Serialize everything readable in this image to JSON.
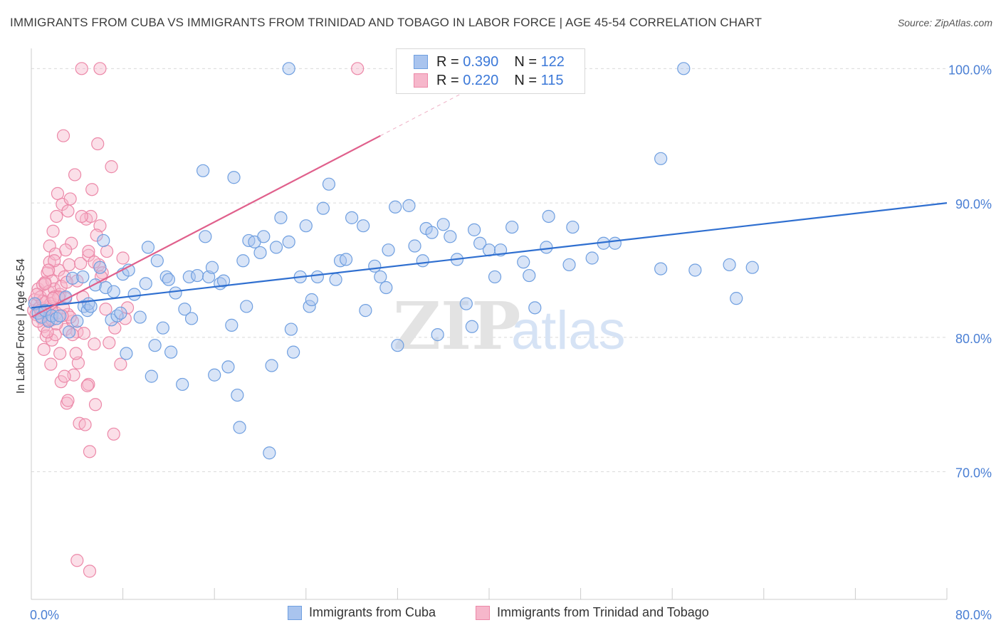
{
  "title": "IMMIGRANTS FROM CUBA VS IMMIGRANTS FROM TRINIDAD AND TOBAGO IN LABOR FORCE | AGE 45-54 CORRELATION CHART",
  "source": "Source: ZipAtlas.com",
  "watermark": {
    "zip": "ZIP",
    "atlas": "atlas"
  },
  "legend": {
    "cuba": {
      "r_label": "R = ",
      "r_value": "0.390",
      "n_label": "N = ",
      "n_value": "122"
    },
    "tt": {
      "r_label": "R = ",
      "r_value": "0.220",
      "n_label": "N = ",
      "n_value": "115"
    }
  },
  "bottom_legend": {
    "cuba": "Immigrants from Cuba",
    "tt": "Immigrants from Trinidad and Tobago"
  },
  "colors": {
    "cuba_fill": "#a9c4ee",
    "cuba_stroke": "#6f9fe0",
    "cuba_line": "#2f6fd0",
    "tt_fill": "#f6b7cb",
    "tt_stroke": "#ec88a8",
    "tt_line": "#e0608c",
    "axis_text": "#4a7fd4",
    "grid": "#d9d9d9"
  },
  "chart_data": {
    "type": "scatter",
    "title": "IMMIGRANTS FROM CUBA VS IMMIGRANTS FROM TRINIDAD AND TOBAGO IN LABOR FORCE | AGE 45-54 CORRELATION CHART",
    "xlabel": "",
    "ylabel": "In Labor Force | Age 45-54",
    "xlim": [
      0,
      80
    ],
    "ylim": [
      60.5,
      101.5
    ],
    "x_tick_labels": [
      "0.0%",
      "80.0%"
    ],
    "y_ticks": [
      70,
      80,
      90,
      100
    ],
    "y_tick_labels": [
      "70.0%",
      "80.0%",
      "90.0%",
      "100.0%"
    ],
    "grid": true,
    "series": [
      {
        "name": "Immigrants from Cuba",
        "r": 0.39,
        "n": 122,
        "trend": {
          "x": [
            0,
            80
          ],
          "y": [
            82.2,
            90.0
          ]
        },
        "points": [
          [
            0.3,
            82.5
          ],
          [
            0.6,
            81.8
          ],
          [
            0.9,
            81.5
          ],
          [
            1.2,
            82.0
          ],
          [
            1.5,
            81.2
          ],
          [
            1.8,
            81.6
          ],
          [
            2.2,
            81.4
          ],
          [
            2.5,
            81.6
          ],
          [
            3.0,
            83.0
          ],
          [
            3.3,
            80.4
          ],
          [
            3.6,
            84.4
          ],
          [
            4.0,
            81.2
          ],
          [
            4.5,
            84.5
          ],
          [
            4.6,
            82.3
          ],
          [
            4.9,
            82.0
          ],
          [
            5.0,
            82.5
          ],
          [
            5.2,
            82.3
          ],
          [
            5.6,
            83.9
          ],
          [
            6.0,
            85.2
          ],
          [
            6.3,
            87.2
          ],
          [
            6.5,
            83.7
          ],
          [
            7.0,
            81.3
          ],
          [
            7.2,
            83.4
          ],
          [
            7.5,
            81.6
          ],
          [
            7.8,
            81.8
          ],
          [
            8.0,
            84.7
          ],
          [
            8.3,
            78.8
          ],
          [
            8.5,
            85.0
          ],
          [
            9.0,
            83.2
          ],
          [
            9.5,
            81.5
          ],
          [
            10.0,
            84.0
          ],
          [
            10.2,
            86.7
          ],
          [
            10.5,
            77.1
          ],
          [
            10.8,
            79.4
          ],
          [
            11.0,
            85.7
          ],
          [
            11.5,
            80.7
          ],
          [
            11.8,
            84.5
          ],
          [
            12.0,
            84.3
          ],
          [
            12.2,
            78.9
          ],
          [
            12.6,
            83.3
          ],
          [
            13.2,
            76.5
          ],
          [
            13.4,
            82.1
          ],
          [
            13.8,
            84.5
          ],
          [
            14.0,
            81.4
          ],
          [
            14.5,
            84.6
          ],
          [
            15.0,
            92.4
          ],
          [
            15.2,
            87.5
          ],
          [
            15.5,
            84.5
          ],
          [
            15.8,
            85.2
          ],
          [
            16.0,
            77.2
          ],
          [
            16.5,
            84.0
          ],
          [
            16.8,
            84.2
          ],
          [
            17.2,
            77.8
          ],
          [
            17.5,
            80.9
          ],
          [
            17.7,
            91.9
          ],
          [
            18.0,
            75.7
          ],
          [
            18.2,
            73.3
          ],
          [
            18.5,
            85.7
          ],
          [
            18.8,
            82.3
          ],
          [
            19.0,
            87.2
          ],
          [
            19.5,
            87.1
          ],
          [
            20.0,
            86.3
          ],
          [
            20.3,
            87.5
          ],
          [
            20.8,
            71.4
          ],
          [
            21.0,
            77.9
          ],
          [
            21.4,
            86.7
          ],
          [
            21.8,
            88.9
          ],
          [
            22.5,
            87.1
          ],
          [
            22.7,
            80.6
          ],
          [
            22.9,
            78.9
          ],
          [
            23.5,
            84.5
          ],
          [
            24.0,
            88.3
          ],
          [
            24.3,
            82.3
          ],
          [
            24.5,
            82.8
          ],
          [
            25.0,
            84.5
          ],
          [
            25.5,
            89.6
          ],
          [
            26.0,
            91.4
          ],
          [
            26.6,
            84.3
          ],
          [
            27.0,
            85.7
          ],
          [
            27.5,
            85.8
          ],
          [
            28.0,
            88.9
          ],
          [
            29.0,
            88.3
          ],
          [
            29.2,
            82.0
          ],
          [
            30.0,
            85.3
          ],
          [
            30.5,
            84.5
          ],
          [
            31.0,
            83.7
          ],
          [
            31.2,
            86.5
          ],
          [
            31.8,
            89.7
          ],
          [
            32.0,
            79.4
          ],
          [
            33.0,
            89.8
          ],
          [
            33.5,
            86.8
          ],
          [
            34.2,
            85.7
          ],
          [
            34.5,
            88.1
          ],
          [
            35.0,
            87.8
          ],
          [
            35.5,
            80.2
          ],
          [
            36.0,
            88.4
          ],
          [
            36.6,
            87.5
          ],
          [
            37.2,
            85.8
          ],
          [
            38.0,
            82.5
          ],
          [
            38.5,
            80.8
          ],
          [
            38.7,
            88.0
          ],
          [
            39.2,
            87.0
          ],
          [
            40.0,
            86.5
          ],
          [
            40.5,
            84.5
          ],
          [
            41.0,
            86.5
          ],
          [
            42.0,
            88.2
          ],
          [
            43.0,
            85.6
          ],
          [
            43.5,
            84.6
          ],
          [
            44.0,
            82.2
          ],
          [
            45.0,
            86.7
          ],
          [
            45.2,
            89.0
          ],
          [
            47.0,
            85.4
          ],
          [
            47.3,
            88.2
          ],
          [
            49.0,
            85.9
          ],
          [
            50.0,
            87.0
          ],
          [
            51.0,
            87.0
          ],
          [
            55.0,
            85.1
          ],
          [
            58.0,
            85.0
          ],
          [
            61.0,
            85.4
          ],
          [
            61.6,
            82.9
          ],
          [
            63.0,
            85.2
          ],
          [
            22.5,
            100.0
          ],
          [
            57.0,
            100.0
          ],
          [
            55.0,
            93.3
          ]
        ]
      },
      {
        "name": "Immigrants from Trinidad and Tobago",
        "r": 0.22,
        "n": 115,
        "trend": {
          "x": [
            0,
            30.5
          ],
          "y": [
            81.5,
            95.0
          ]
        },
        "points": [
          [
            0.2,
            82.0
          ],
          [
            0.3,
            82.8
          ],
          [
            0.4,
            81.7
          ],
          [
            0.5,
            82.5
          ],
          [
            0.6,
            83.6
          ],
          [
            0.7,
            82.2
          ],
          [
            0.8,
            83.0
          ],
          [
            0.9,
            81.4
          ],
          [
            1.0,
            83.9
          ],
          [
            1.1,
            80.8
          ],
          [
            1.1,
            79.1
          ],
          [
            1.2,
            84.1
          ],
          [
            1.2,
            82.6
          ],
          [
            1.3,
            81.9
          ],
          [
            1.3,
            80.1
          ],
          [
            1.4,
            84.8
          ],
          [
            1.5,
            83.4
          ],
          [
            1.5,
            81.3
          ],
          [
            1.6,
            86.8
          ],
          [
            1.6,
            85.6
          ],
          [
            1.7,
            82.3
          ],
          [
            1.7,
            78.0
          ],
          [
            1.8,
            84.2
          ],
          [
            1.8,
            79.8
          ],
          [
            1.9,
            87.9
          ],
          [
            2.0,
            83.6
          ],
          [
            2.1,
            86.2
          ],
          [
            2.1,
            80.2
          ],
          [
            2.2,
            89.0
          ],
          [
            2.2,
            81.8
          ],
          [
            2.3,
            90.7
          ],
          [
            2.4,
            85.0
          ],
          [
            2.5,
            83.2
          ],
          [
            2.5,
            78.8
          ],
          [
            2.6,
            76.7
          ],
          [
            2.7,
            89.9
          ],
          [
            2.8,
            95.0
          ],
          [
            2.9,
            84.5
          ],
          [
            3.0,
            82.9
          ],
          [
            3.0,
            80.6
          ],
          [
            3.1,
            75.1
          ],
          [
            3.2,
            89.4
          ],
          [
            3.2,
            75.3
          ],
          [
            3.3,
            85.4
          ],
          [
            3.4,
            90.3
          ],
          [
            3.5,
            87.0
          ],
          [
            3.6,
            81.2
          ],
          [
            3.7,
            77.2
          ],
          [
            3.8,
            92.1
          ],
          [
            4.0,
            80.4
          ],
          [
            4.1,
            78.1
          ],
          [
            4.2,
            73.6
          ],
          [
            4.3,
            85.5
          ],
          [
            4.5,
            83.0
          ],
          [
            4.6,
            80.3
          ],
          [
            4.8,
            88.8
          ],
          [
            5.0,
            86.1
          ],
          [
            5.0,
            76.5
          ],
          [
            5.2,
            89.0
          ],
          [
            5.3,
            91.0
          ],
          [
            5.5,
            79.5
          ],
          [
            5.6,
            75.0
          ],
          [
            5.8,
            94.4
          ],
          [
            5.9,
            85.4
          ],
          [
            6.0,
            88.3
          ],
          [
            6.2,
            84.8
          ],
          [
            6.5,
            82.1
          ],
          [
            6.6,
            86.4
          ],
          [
            6.8,
            79.6
          ],
          [
            7.0,
            92.7
          ],
          [
            7.3,
            80.7
          ],
          [
            7.8,
            78.0
          ],
          [
            8.0,
            85.9
          ],
          [
            8.2,
            81.4
          ],
          [
            8.4,
            82.2
          ],
          [
            5.0,
            86.4
          ],
          [
            2.6,
            83.8
          ],
          [
            1.4,
            80.4
          ],
          [
            4.0,
            84.2
          ],
          [
            2.0,
            83.0
          ],
          [
            1.7,
            82.5
          ],
          [
            0.9,
            81.8
          ],
          [
            3.2,
            81.7
          ],
          [
            5.5,
            85.6
          ],
          [
            6.1,
            84.5
          ],
          [
            0.6,
            81.2
          ],
          [
            1.0,
            82.7
          ],
          [
            2.8,
            82.2
          ],
          [
            3.9,
            78.8
          ],
          [
            4.9,
            76.4
          ],
          [
            1.8,
            81.3
          ],
          [
            2.4,
            83.0
          ],
          [
            3.4,
            81.5
          ],
          [
            0.5,
            83.2
          ],
          [
            2.0,
            85.7
          ],
          [
            3.0,
            86.5
          ],
          [
            4.4,
            89.0
          ],
          [
            5.7,
            87.6
          ],
          [
            1.2,
            84.0
          ],
          [
            2.9,
            77.1
          ],
          [
            3.6,
            80.2
          ],
          [
            4.7,
            73.5
          ],
          [
            5.1,
            71.5
          ],
          [
            7.2,
            72.8
          ],
          [
            4.0,
            63.4
          ],
          [
            5.1,
            62.6
          ],
          [
            4.4,
            100.0
          ],
          [
            6.0,
            100.0
          ],
          [
            28.5,
            100.0
          ],
          [
            1.5,
            85.0
          ],
          [
            2.2,
            81.0
          ],
          [
            3.1,
            84.1
          ],
          [
            0.8,
            82.0
          ],
          [
            1.9,
            82.9
          ],
          [
            2.7,
            81.6
          ]
        ]
      }
    ]
  }
}
